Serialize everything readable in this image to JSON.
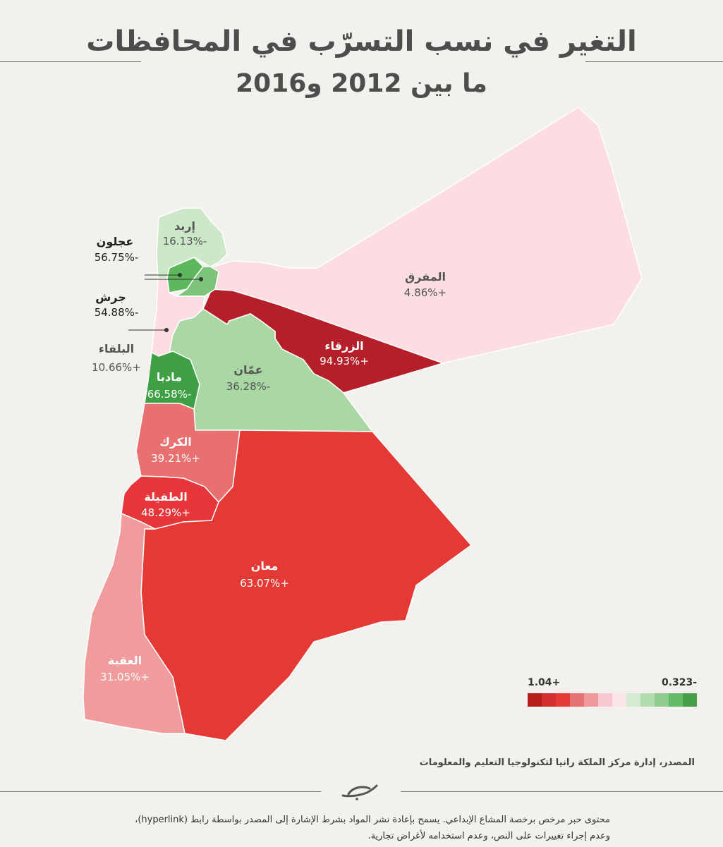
{
  "title_line1": "التغير في نسب التسرّب في المحافظات",
  "title_line2": "ما بين 2012 و2016",
  "governorates": {
    "irbid": {
      "name": "إربد",
      "value": "-16.13%",
      "color": "#cde7c9"
    },
    "ajloun": {
      "name": "عجلون",
      "value": "-56.75%",
      "color": "#5db85d"
    },
    "jerash": {
      "name": "جرش",
      "value": "-54.88%",
      "color": "#7cc57a"
    },
    "balqa": {
      "name": "البلقاء",
      "value": "+10.66%",
      "color": "#fbdde2"
    },
    "madaba": {
      "name": "مادبا",
      "value": "-66.58%",
      "color": "#3f9f45"
    },
    "amman": {
      "name": "عمّان",
      "value": "-36.28%",
      "color": "#a9d8a5"
    },
    "mafraq": {
      "name": "المفرق",
      "value": "+4.86%",
      "color": "#fbdde2"
    },
    "zarqa": {
      "name": "الزرقاء",
      "value": "+94.93%",
      "color": "#b51f2a"
    },
    "karak": {
      "name": "الكرك",
      "value": "+39.21%",
      "color": "#e87070"
    },
    "tafilah": {
      "name": "الطفيلة",
      "value": "+48.29%",
      "color": "#e6363a"
    },
    "maan": {
      "name": "معان",
      "value": "+63.07%",
      "color": "#e53935"
    },
    "aqaba": {
      "name": "العقبة",
      "value": "+31.05%",
      "color": "#f19c9c"
    }
  },
  "legend": {
    "max_label": "+1.04",
    "min_label": "-0.323",
    "colors": [
      "#b71c1c",
      "#d32f2f",
      "#e53935",
      "#e57373",
      "#ef9a9a",
      "#f8c9d0",
      "#fde4e8",
      "#d4ebd2",
      "#b3dcb0",
      "#8fcb8c",
      "#66bb6a",
      "#43a047"
    ]
  },
  "source": "المصدر، إدارة مركز الملكة رانيا لتكنولوجيا التعليم والمعلومات",
  "footer_line1": "محتوى حبر مرخص برخصة المشاع الإبداعي. يسمح بإعادة نشر المواد بشرط الإشارة إلى المصدر بواسطة رابط (hyperlink)،",
  "footer_line2": "وعدم إجراء تغييرات على النص، وعدم استخدامه لأغراض تجارية."
}
